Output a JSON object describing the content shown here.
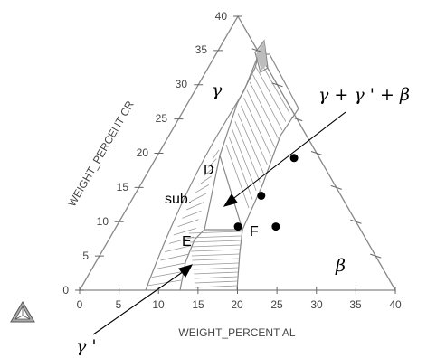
{
  "diagram": {
    "axes": {
      "bottom": {
        "label": "WEIGHT_PERCENT AL",
        "ticks": [
          "0",
          "5",
          "10",
          "15",
          "20",
          "25",
          "30",
          "35",
          "40"
        ]
      },
      "left": {
        "label": "WEIGHT_PERCENT CR",
        "ticks": [
          "0",
          "5",
          "10",
          "15",
          "20",
          "25",
          "30",
          "35",
          "40"
        ]
      },
      "right": {
        "tick_count": 8
      }
    },
    "phase_labels": {
      "gamma": "γ",
      "beta": "β",
      "three_phase": "γ + γ ' + β",
      "gamma_prime": "γ '"
    },
    "points": [
      {
        "name": "D",
        "al": 17.5,
        "cr": 19.3
      },
      {
        "name": "sub.",
        "al": 16.1,
        "cr": 13.8
      },
      {
        "name": "E",
        "al": 15.4,
        "cr": 9.3
      },
      {
        "name": "F",
        "al": 20.2,
        "cr": 9.3
      }
    ],
    "colors": {
      "line": "#888888",
      "tieline": "#999999",
      "marker": "#000000",
      "text": "#444444"
    },
    "logo_icon": "thermo-calc-triangle-icon"
  }
}
